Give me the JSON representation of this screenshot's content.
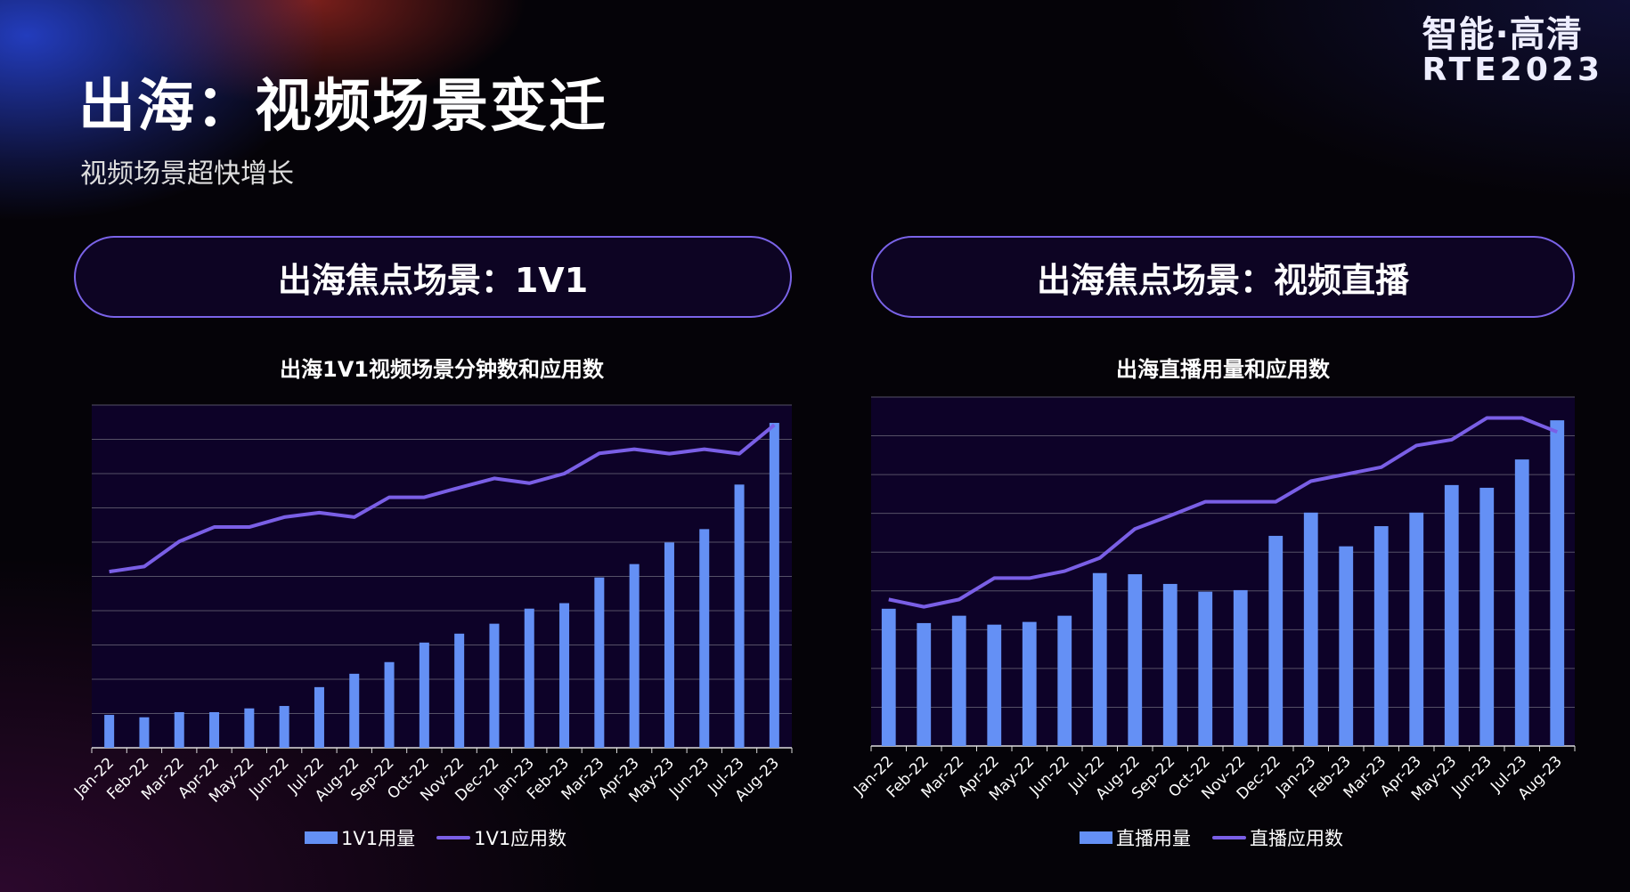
{
  "header": {
    "title": "出海：视频场景变迁",
    "subtitle": "视频场景超快增长"
  },
  "logo": {
    "line1": "智能·高清",
    "line2": "RTE2023"
  },
  "colors": {
    "bar": "#6490f5",
    "line": "#7a5fe6",
    "plot_bg": "#0d0228",
    "grid": "#555066",
    "pill_border": "#7a63e8"
  },
  "panels": [
    {
      "heading": "出海焦点场景：1V1"
    },
    {
      "heading": "出海焦点场景：视频直播"
    }
  ],
  "chart_data": [
    {
      "type": "bar+line",
      "title": "出海1V1视频场景分钟数和应用数",
      "categories": [
        "Jan-22",
        "Feb-22",
        "Mar-22",
        "Apr-22",
        "May-22",
        "Jun-22",
        "Jul-22",
        "Aug-22",
        "Sep-22",
        "Oct-22",
        "Nov-22",
        "Dec-22",
        "Jan-23",
        "Feb-23",
        "Mar-23",
        "Apr-23",
        "May-23",
        "Jun-23",
        "Jul-23",
        "Aug-23"
      ],
      "ylim": [
        0,
        10
      ],
      "grid": true,
      "y_tick_labels": false,
      "legend": "bottom",
      "series": [
        {
          "name": "1V1用量",
          "kind": "bar",
          "values": [
            0.96,
            0.89,
            1.04,
            1.04,
            1.15,
            1.22,
            1.77,
            2.16,
            2.5,
            3.07,
            3.33,
            3.62,
            4.06,
            4.22,
            4.97,
            5.36,
            5.99,
            6.38,
            7.68,
            9.48
          ]
        },
        {
          "name": "1V1应用数",
          "kind": "line",
          "values": [
            5.14,
            5.29,
            6.02,
            6.44,
            6.44,
            6.73,
            6.86,
            6.73,
            7.31,
            7.31,
            7.59,
            7.86,
            7.72,
            8.0,
            8.59,
            8.71,
            8.58,
            8.71,
            8.58,
            9.42
          ]
        }
      ]
    },
    {
      "type": "bar+line",
      "title": "出海直播用量和应用数",
      "categories": [
        "Jan-22",
        "Feb-22",
        "Mar-22",
        "Apr-22",
        "May-22",
        "Jun-22",
        "Jul-22",
        "Aug-22",
        "Sep-22",
        "Oct-22",
        "Nov-22",
        "Dec-22",
        "Jan-23",
        "Feb-23",
        "Mar-23",
        "Apr-23",
        "May-23",
        "Jun-23",
        "Jul-23",
        "Aug-23"
      ],
      "ylim": [
        0,
        9
      ],
      "grid": true,
      "y_tick_labels": false,
      "legend": "bottom",
      "series": [
        {
          "name": "直播用量",
          "kind": "bar",
          "values": [
            3.54,
            3.17,
            3.36,
            3.13,
            3.2,
            3.36,
            4.46,
            4.43,
            4.18,
            3.98,
            4.02,
            5.42,
            6.02,
            5.15,
            5.67,
            6.02,
            6.73,
            6.66,
            7.39,
            8.4
          ]
        },
        {
          "name": "直播应用数",
          "kind": "line",
          "values": [
            3.78,
            3.59,
            3.78,
            4.33,
            4.33,
            4.51,
            4.85,
            5.6,
            5.94,
            6.3,
            6.3,
            6.3,
            6.83,
            7.01,
            7.19,
            7.75,
            7.9,
            8.46,
            8.46,
            8.1
          ]
        }
      ]
    }
  ]
}
